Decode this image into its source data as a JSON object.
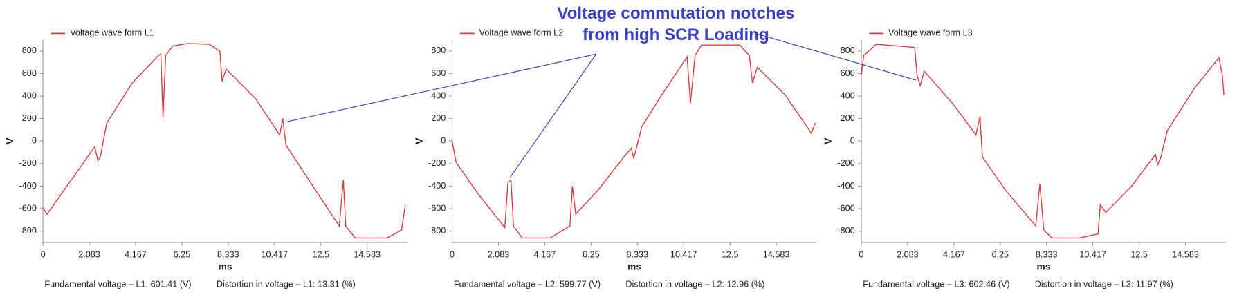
{
  "annotation": {
    "lines": [
      "Voltage commutation notches",
      "from high SCR Loading"
    ]
  },
  "chart_data": [
    {
      "type": "line",
      "x_label": "ms",
      "y_label": "V",
      "xlim": [
        0,
        16.4
      ],
      "ylim": [
        -900,
        900
      ],
      "xticks": [
        0,
        2.083,
        4.167,
        6.25,
        8.333,
        10.417,
        12.5,
        14.583
      ],
      "yticks": [
        -800,
        -600,
        -400,
        -200,
        0,
        200,
        400,
        600,
        800
      ],
      "footer": {
        "fundamental": "Fundamental voltage – L1: 601.41 (V)",
        "distortion": "Distortion in voltage – L1: 13.31 (%)"
      },
      "x": [
        0,
        0.18,
        1.33,
        2.33,
        2.47,
        2.58,
        2.87,
        4.01,
        5.2,
        5.3,
        5.4,
        5.52,
        5.84,
        6.52,
        7.49,
        7.96,
        8.06,
        8.24,
        9.57,
        10.65,
        10.79,
        10.93,
        12.26,
        13.33,
        13.51,
        13.62,
        14.05,
        15.48,
        16.13,
        16.3
      ],
      "series": [
        {
          "name": "Voltage wave form L1",
          "color": "#e03838",
          "values": [
            -590,
            -650,
            -330,
            -50,
            -175,
            -140,
            160,
            515,
            760,
            775,
            210,
            760,
            845,
            867,
            860,
            796,
            530,
            640,
            375,
            55,
            200,
            -35,
            -435,
            -755,
            -345,
            -755,
            -860,
            -860,
            -790,
            -565
          ]
        }
      ]
    },
    {
      "type": "line",
      "x_label": "ms",
      "y_label": "V",
      "xlim": [
        0,
        16.4
      ],
      "ylim": [
        -900,
        900
      ],
      "xticks": [
        0,
        2.083,
        4.167,
        6.25,
        8.333,
        10.417,
        12.5,
        14.583
      ],
      "yticks": [
        -800,
        -600,
        -400,
        -200,
        0,
        200,
        400,
        600,
        800
      ],
      "footer": {
        "fundamental": "Fundamental voltage – L2: 599.77 (V)",
        "distortion": "Distortion in voltage – L2: 12.96 (%)"
      },
      "x": [
        0,
        0.18,
        1.18,
        2.37,
        2.51,
        2.65,
        2.76,
        3.15,
        4.41,
        5.3,
        5.41,
        5.56,
        6.56,
        7.81,
        8.06,
        8.17,
        8.53,
        9.43,
        10.57,
        10.72,
        10.93,
        11.22,
        12.94,
        13.37,
        13.51,
        13.73,
        14.98,
        16.16,
        16.34
      ],
      "series": [
        {
          "name": "Voltage wave form L2",
          "color": "#e03838",
          "values": [
            0,
            -190,
            -472,
            -768,
            -366,
            -352,
            -754,
            -860,
            -860,
            -754,
            -400,
            -648,
            -437,
            -120,
            -63,
            -155,
            127,
            410,
            747,
            338,
            760,
            853,
            853,
            760,
            515,
            655,
            410,
            70,
            162
          ]
        }
      ]
    },
    {
      "type": "line",
      "x_label": "ms",
      "y_label": "V",
      "xlim": [
        0,
        16.4
      ],
      "ylim": [
        -900,
        900
      ],
      "xticks": [
        0,
        2.083,
        4.167,
        6.25,
        8.333,
        10.417,
        12.5,
        14.583
      ],
      "yticks": [
        -800,
        -600,
        -400,
        -200,
        0,
        200,
        400,
        600,
        800
      ],
      "footer": {
        "fundamental": "Fundamental voltage – L3: 602.46 (V)",
        "distortion": "Distortion in voltage – L3: 11.97 (%)"
      },
      "x": [
        0,
        0.11,
        0.68,
        2.4,
        2.51,
        2.65,
        2.83,
        4.09,
        5.16,
        5.34,
        5.45,
        6.49,
        7.85,
        8.03,
        8.21,
        8.57,
        9.82,
        10.65,
        10.75,
        11.0,
        12.15,
        13.23,
        13.33,
        13.48,
        13.76,
        15.02,
        16.09,
        16.24,
        16.31
      ],
      "series": [
        {
          "name": "Voltage wave form L3",
          "color": "#e03838",
          "values": [
            585,
            760,
            860,
            832,
            585,
            493,
            620,
            338,
            56,
            218,
            -141,
            -437,
            -754,
            -380,
            -790,
            -860,
            -860,
            -825,
            -565,
            -634,
            -402,
            -120,
            -211,
            -141,
            92,
            479,
            740,
            585,
            409
          ]
        }
      ]
    }
  ]
}
